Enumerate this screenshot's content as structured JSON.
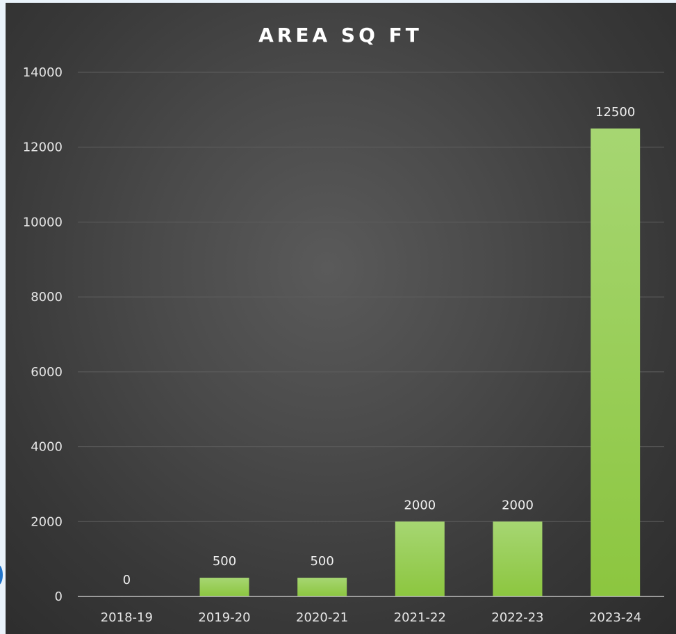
{
  "chart_data": {
    "type": "bar",
    "title": "AREA SQ FT",
    "categories": [
      "2018-19",
      "2019-20",
      "2020-21",
      "2021-22",
      "2022-23",
      "2023-24"
    ],
    "values": [
      0,
      500,
      500,
      2000,
      2000,
      12500
    ],
    "data_labels": [
      "0",
      "500",
      "500",
      "2000",
      "2000",
      "12500"
    ],
    "ylim": [
      0,
      14000
    ],
    "yticks": [
      "0",
      "2000",
      "4000",
      "6000",
      "8000",
      "10000",
      "12000",
      "14000"
    ],
    "xlabel": "",
    "ylabel": "",
    "grid": true,
    "legend": "none",
    "colors": {
      "bar_top": "#a6d672",
      "bar_bottom": "#8cc63f",
      "background": "#3f3f3f"
    }
  }
}
